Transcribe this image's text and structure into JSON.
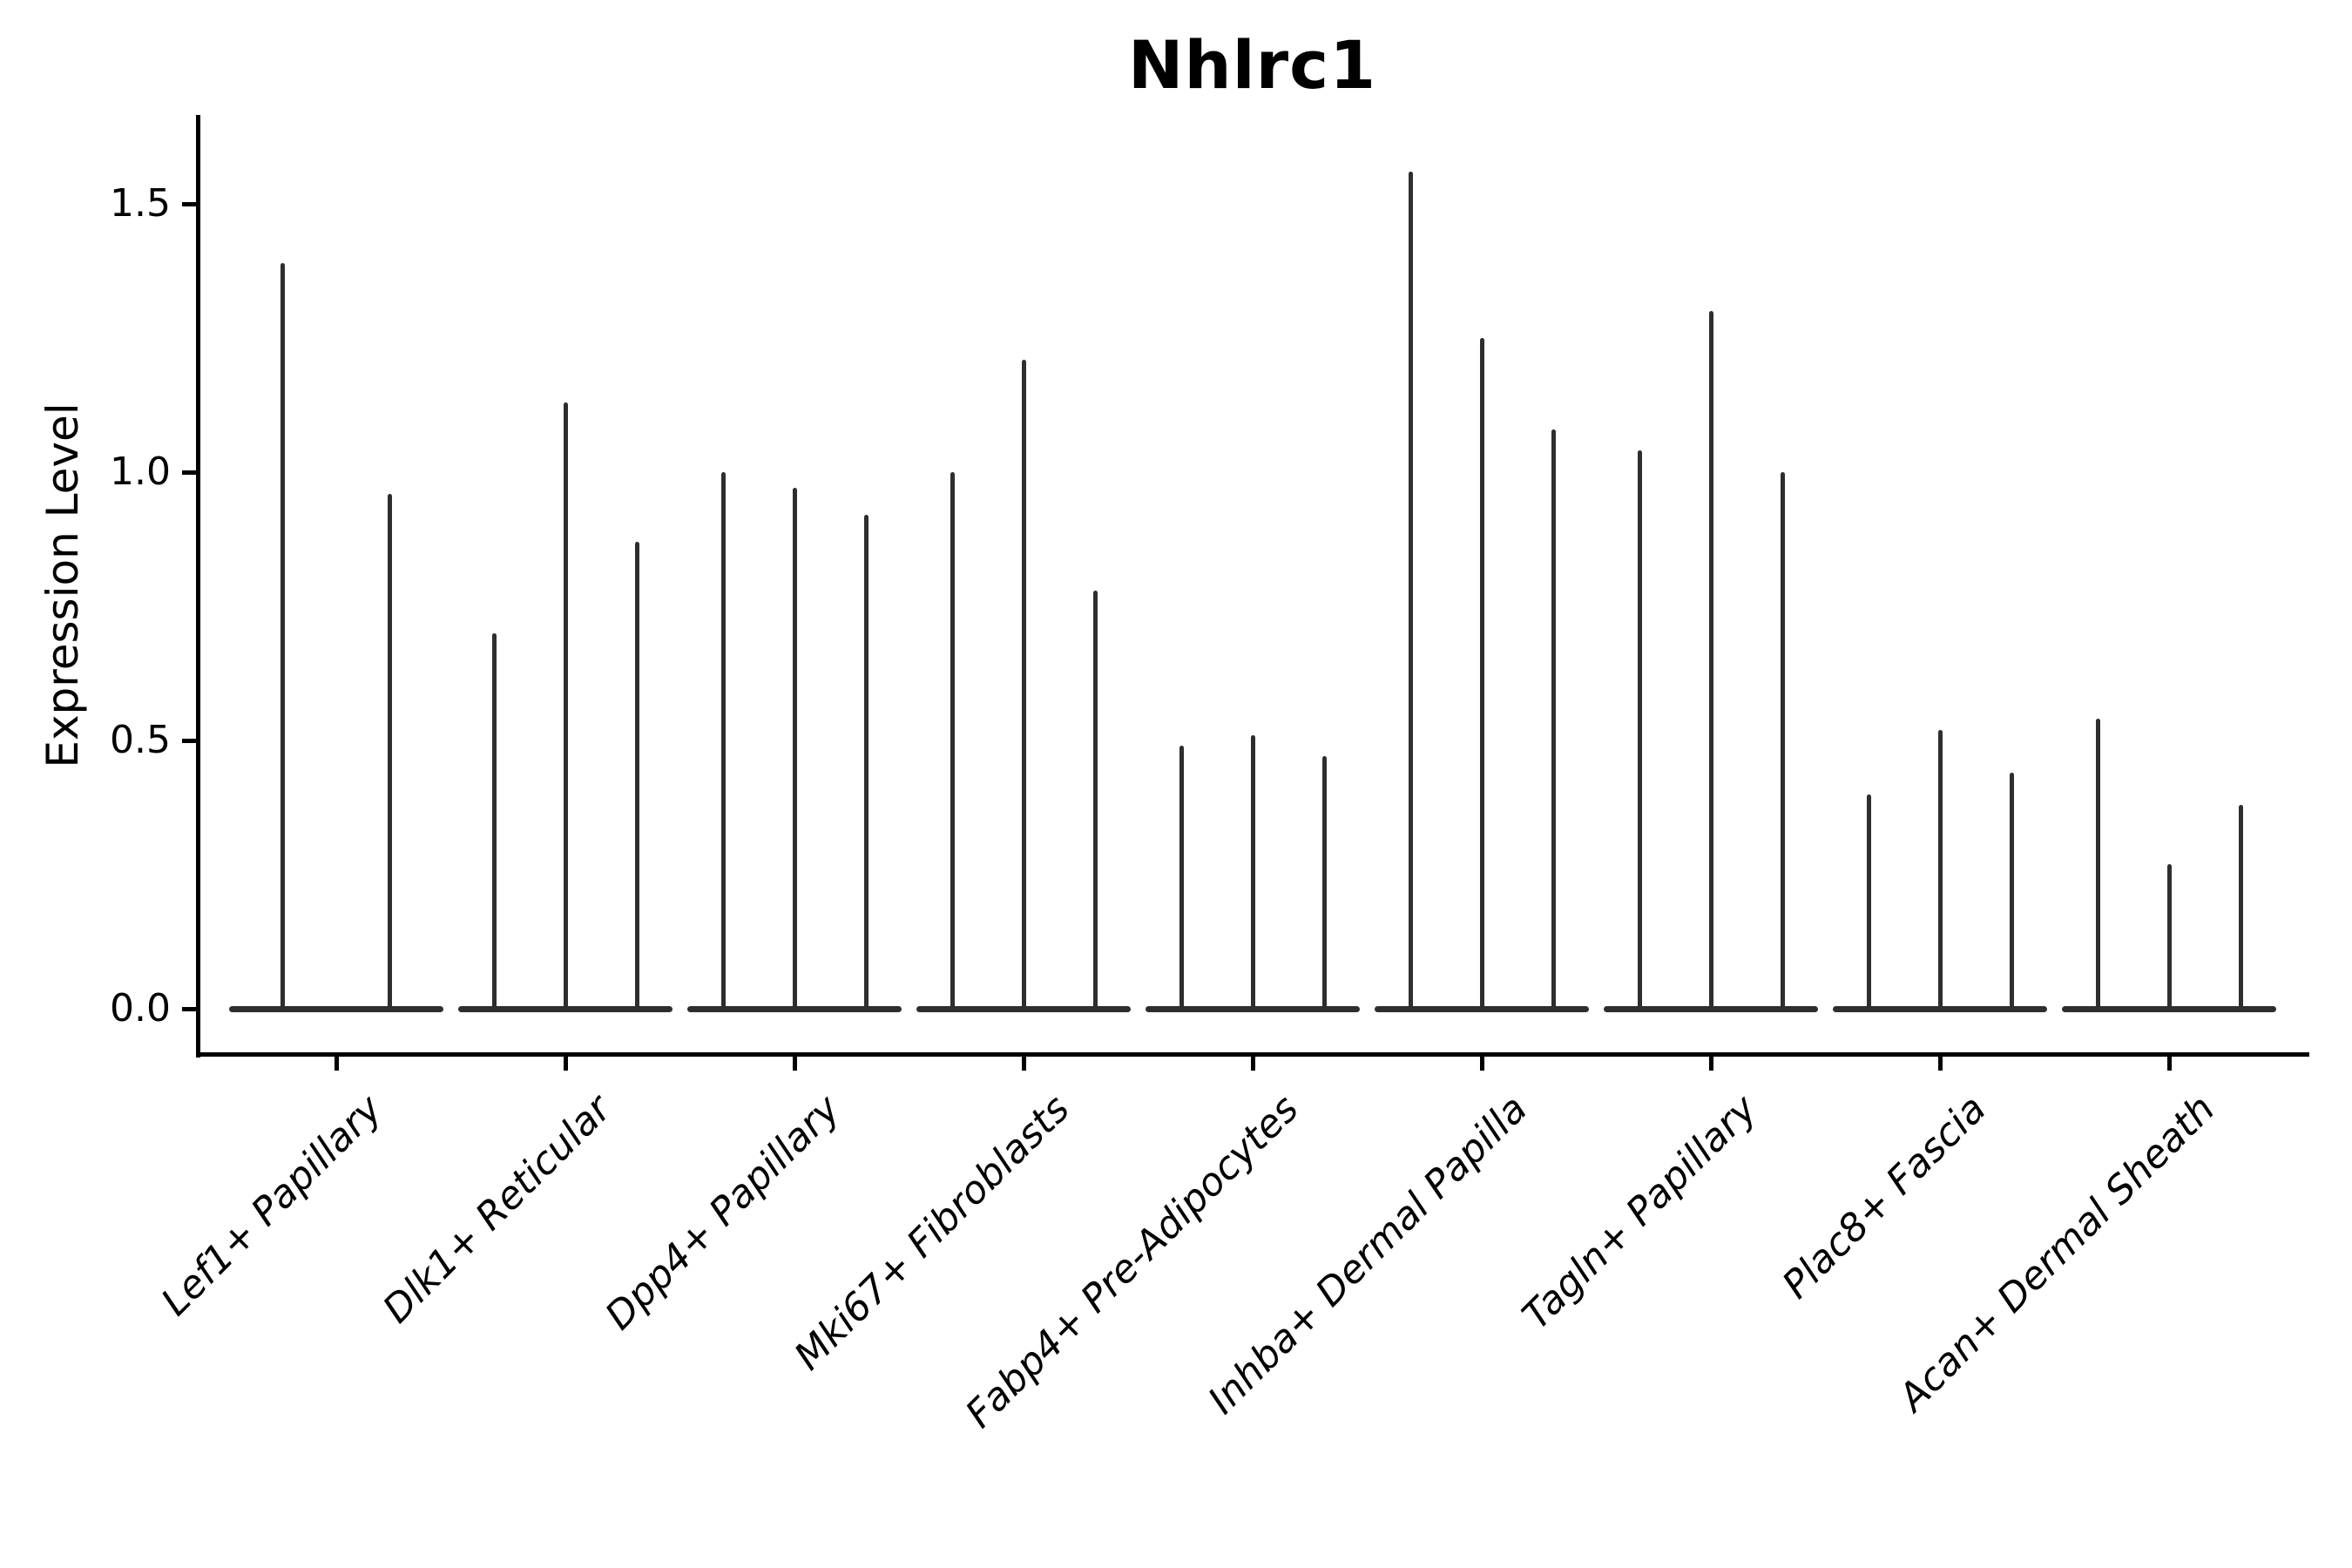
{
  "figure": {
    "title": "Nhlrc1",
    "y_axis_label": "Expression Level",
    "background_color": "#ffffff",
    "axis_color": "#000000",
    "violin_color": "#2e2e2e",
    "text_color": "#000000"
  },
  "chart_data": {
    "type": "violin",
    "title": "Nhlrc1",
    "xlabel": "",
    "ylabel": "Expression Level",
    "ylim": [
      -0.09,
      1.67
    ],
    "yticks": [
      1.5,
      1.0,
      0.5,
      0.0
    ],
    "ytick_labels": [
      "1.5",
      "1.0",
      "0.5",
      "0.0"
    ],
    "grid": false,
    "legend": "none",
    "x_tick_rotation_deg": 45,
    "description": "Single-cell expression violin plot; each category shows 2-3 extremely thin violins collapsed at 0 (flat base) with a narrow spike rising to the maximum expression value.",
    "categories": [
      "Lef1+ Papillary",
      "Dlk1+ Reticular",
      "Dpp4+ Papillary",
      "Mki67+ Fibroblasts",
      "Fabp4+ Pre-Adipocytes",
      "Inhba+ Dermal Papilla",
      "Tagln+ Papillary",
      "Plac8+ Fascia",
      "Acan+ Dermal Sheath"
    ],
    "groups": [
      {
        "label": "Lef1+ Papillary",
        "baseline": 0.0,
        "spike_maxima": [
          1.39,
          0.96
        ]
      },
      {
        "label": "Dlk1+ Reticular",
        "baseline": 0.0,
        "spike_maxima": [
          0.7,
          1.13,
          0.87
        ]
      },
      {
        "label": "Dpp4+ Papillary",
        "baseline": 0.0,
        "spike_maxima": [
          1.0,
          0.97,
          0.92
        ]
      },
      {
        "label": "Mki67+ Fibroblasts",
        "baseline": 0.0,
        "spike_maxima": [
          1.0,
          1.21,
          0.78
        ]
      },
      {
        "label": "Fabp4+ Pre-Adipocytes",
        "baseline": 0.0,
        "spike_maxima": [
          0.49,
          0.51,
          0.47
        ]
      },
      {
        "label": "Inhba+ Dermal Papilla",
        "baseline": 0.0,
        "spike_maxima": [
          1.56,
          1.25,
          1.08
        ]
      },
      {
        "label": "Tagln+ Papillary",
        "baseline": 0.0,
        "spike_maxima": [
          1.04,
          1.3,
          1.0
        ]
      },
      {
        "label": "Plac8+ Fascia",
        "baseline": 0.0,
        "spike_maxima": [
          0.4,
          0.52,
          0.44
        ]
      },
      {
        "label": "Acan+ Dermal Sheath",
        "baseline": 0.0,
        "spike_maxima": [
          0.54,
          0.27,
          0.38
        ]
      }
    ]
  }
}
